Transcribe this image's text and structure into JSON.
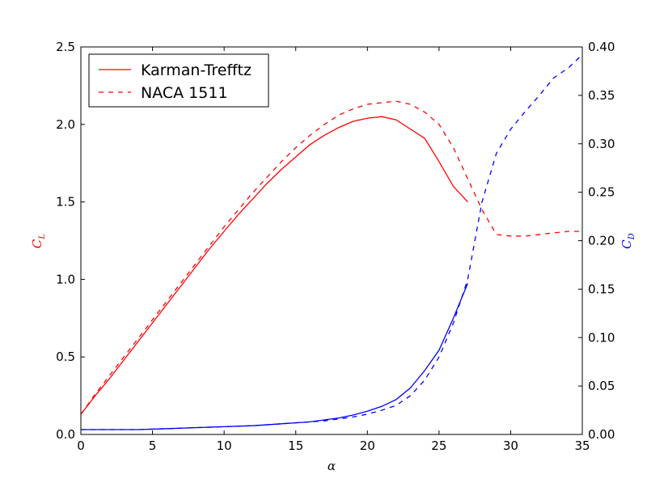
{
  "chart_data": {
    "type": "line",
    "x_label": "α",
    "y_label_left": {
      "text": "C",
      "sub": "L",
      "color": "#ff0000"
    },
    "y_label_right": {
      "text": "C",
      "sub": "D",
      "color": "#0000ff"
    },
    "xlim": [
      0,
      35
    ],
    "ylim_left": [
      0,
      2.5
    ],
    "ylim_right": [
      0,
      0.4
    ],
    "x_ticks": [
      "0",
      "5",
      "10",
      "15",
      "20",
      "25",
      "30",
      "35"
    ],
    "y_ticks_left": [
      "0.0",
      "0.5",
      "1.0",
      "1.5",
      "2.0",
      "2.5"
    ],
    "y_ticks_right": [
      "0.00",
      "0.05",
      "0.10",
      "0.15",
      "0.20",
      "0.25",
      "0.30",
      "0.35",
      "0.40"
    ],
    "legend": {
      "placement": "upper-left",
      "entries": [
        {
          "label": "Karman-Trefftz",
          "style": "solid",
          "color": "#ff0000"
        },
        {
          "label": "NACA 1511",
          "style": "dashed",
          "color": "#ff0000"
        }
      ]
    },
    "series": [
      {
        "name": "Karman-Trefftz",
        "quantity": "CL",
        "axis": "left",
        "style": "solid",
        "color": "#ff0000",
        "x": [
          0,
          1,
          2,
          3,
          4,
          5,
          6,
          7,
          8,
          9,
          10,
          11,
          12,
          13,
          14,
          15,
          16,
          17,
          18,
          19,
          20,
          21,
          22,
          23,
          24,
          25,
          26,
          27
        ],
        "y": [
          0.13,
          0.25,
          0.36,
          0.48,
          0.6,
          0.72,
          0.84,
          0.96,
          1.08,
          1.2,
          1.31,
          1.42,
          1.52,
          1.62,
          1.71,
          1.79,
          1.87,
          1.93,
          1.98,
          2.02,
          2.04,
          2.05,
          2.03,
          1.97,
          1.91,
          1.76,
          1.6,
          1.5
        ]
      },
      {
        "name": "NACA 1511",
        "quantity": "CL",
        "axis": "left",
        "style": "dashed",
        "color": "#ff0000",
        "x": [
          0,
          1,
          2,
          3,
          4,
          5,
          6,
          7,
          8,
          9,
          10,
          11,
          12,
          13,
          14,
          15,
          16,
          17,
          18,
          19,
          20,
          21,
          22,
          23,
          24,
          25,
          26,
          27,
          28,
          29,
          30,
          31,
          32,
          33,
          34,
          35
        ],
        "y": [
          0.13,
          0.26,
          0.38,
          0.5,
          0.62,
          0.74,
          0.86,
          0.98,
          1.1,
          1.22,
          1.34,
          1.45,
          1.56,
          1.66,
          1.76,
          1.85,
          1.93,
          2.0,
          2.06,
          2.1,
          2.13,
          2.14,
          2.15,
          2.13,
          2.08,
          2.0,
          1.85,
          1.65,
          1.45,
          1.29,
          1.28,
          1.28,
          1.29,
          1.3,
          1.31,
          1.31
        ]
      },
      {
        "name": "Karman-Trefftz",
        "quantity": "CD",
        "axis": "right",
        "style": "solid",
        "color": "#0000ff",
        "x": [
          0,
          2,
          4,
          6,
          8,
          10,
          12,
          14,
          15,
          16,
          17,
          18,
          19,
          20,
          21,
          22,
          23,
          24,
          25,
          26,
          27
        ],
        "y": [
          0.005,
          0.005,
          0.005,
          0.006,
          0.007,
          0.008,
          0.009,
          0.011,
          0.012,
          0.013,
          0.015,
          0.017,
          0.02,
          0.024,
          0.029,
          0.036,
          0.048,
          0.066,
          0.087,
          0.12,
          0.156
        ]
      },
      {
        "name": "NACA 1511",
        "quantity": "CD",
        "axis": "right",
        "style": "dashed",
        "color": "#0000ff",
        "x": [
          0,
          2,
          4,
          6,
          8,
          10,
          12,
          14,
          15,
          16,
          17,
          18,
          19,
          20,
          21,
          22,
          23,
          24,
          25,
          26,
          27,
          28,
          29,
          30,
          31,
          32,
          33,
          34,
          35
        ],
        "y": [
          0.005,
          0.005,
          0.005,
          0.006,
          0.007,
          0.008,
          0.009,
          0.011,
          0.012,
          0.013,
          0.014,
          0.016,
          0.018,
          0.021,
          0.025,
          0.03,
          0.04,
          0.056,
          0.08,
          0.115,
          0.16,
          0.24,
          0.29,
          0.315,
          0.333,
          0.35,
          0.368,
          0.378,
          0.392
        ]
      }
    ]
  }
}
